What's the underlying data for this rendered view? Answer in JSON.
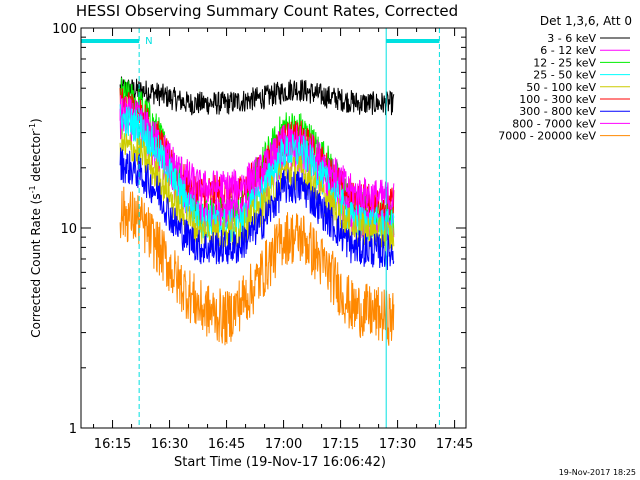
{
  "chart_data": {
    "type": "line",
    "title": "HESSI Observing Summary Count Rates, Corrected",
    "xlabel": "Start Time (19-Nov-17 16:06:42)",
    "ylabel_main": "Corrected Count Rate (s",
    "ylabel_sup1": "-1",
    "ylabel_mid": " detector",
    "ylabel_sup2": "-1",
    "ylabel_end": ")",
    "yscale": "log",
    "ylim": [
      1,
      100
    ],
    "xlim": [
      "16:06:42",
      "17:48:00"
    ],
    "x_ticks": [
      "16:15",
      "16:30",
      "16:45",
      "17:00",
      "17:15",
      "17:30",
      "17:45"
    ],
    "y_ticks": [
      "1",
      "10",
      "100"
    ],
    "legend_title": "Det 1,3,6, Att 0",
    "legend_position": "outside-right-top",
    "footer_date": "19-Nov-2017 18:25",
    "night_label": "N",
    "annotations": {
      "solid_lines": [
        "16:06:42",
        "17:27:00"
      ],
      "dashed_lines": [
        "16:22:00",
        "17:41:00"
      ],
      "bars": [
        {
          "from": "16:06:42",
          "to": "16:22:00",
          "label": "N"
        },
        {
          "from": "17:27:00",
          "to": "17:41:00",
          "label": ""
        }
      ],
      "color": "#00e0e0"
    },
    "series": [
      {
        "name": "3 - 6 keV",
        "color": "#000000",
        "points": [
          [
            "16:17",
            50
          ],
          [
            "16:25",
            48
          ],
          [
            "16:35",
            42
          ],
          [
            "16:45",
            42
          ],
          [
            "16:55",
            45
          ],
          [
            "17:03",
            50
          ],
          [
            "17:10",
            46
          ],
          [
            "17:20",
            42
          ],
          [
            "17:29",
            42
          ]
        ]
      },
      {
        "name": "6 - 12 keV",
        "color": "#ff00ff",
        "points": [
          [
            "16:17",
            38
          ],
          [
            "16:22",
            35
          ],
          [
            "16:27",
            27
          ],
          [
            "16:32",
            20
          ],
          [
            "16:38",
            16
          ],
          [
            "16:48",
            16
          ],
          [
            "16:55",
            20
          ],
          [
            "17:00",
            27
          ],
          [
            "17:05",
            27
          ],
          [
            "17:12",
            20
          ],
          [
            "17:18",
            15
          ],
          [
            "17:29",
            14
          ]
        ]
      },
      {
        "name": "12 - 25 keV",
        "color": "#00ee00",
        "points": [
          [
            "16:17",
            47
          ],
          [
            "16:22",
            42
          ],
          [
            "16:27",
            30
          ],
          [
            "16:32",
            19
          ],
          [
            "16:38",
            12
          ],
          [
            "16:48",
            12
          ],
          [
            "16:55",
            22
          ],
          [
            "17:00",
            32
          ],
          [
            "17:05",
            31
          ],
          [
            "17:12",
            21
          ],
          [
            "17:18",
            13
          ],
          [
            "17:29",
            11
          ]
        ]
      },
      {
        "name": "25 - 50 keV",
        "color": "#00ffff",
        "points": [
          [
            "16:17",
            35
          ],
          [
            "16:22",
            32
          ],
          [
            "16:27",
            24
          ],
          [
            "16:32",
            16
          ],
          [
            "16:38",
            11
          ],
          [
            "16:48",
            10
          ],
          [
            "16:55",
            16
          ],
          [
            "17:00",
            24
          ],
          [
            "17:05",
            24
          ],
          [
            "17:12",
            16
          ],
          [
            "17:18",
            11
          ],
          [
            "17:29",
            10
          ]
        ]
      },
      {
        "name": "50 - 100 keV",
        "color": "#cccc00",
        "points": [
          [
            "16:17",
            26
          ],
          [
            "16:22",
            24
          ],
          [
            "16:27",
            18
          ],
          [
            "16:32",
            12.5
          ],
          [
            "16:38",
            9.5
          ],
          [
            "16:48",
            9.5
          ],
          [
            "16:55",
            13
          ],
          [
            "17:00",
            19
          ],
          [
            "17:05",
            19
          ],
          [
            "17:12",
            13
          ],
          [
            "17:18",
            10
          ],
          [
            "17:29",
            9
          ]
        ]
      },
      {
        "name": "100 - 300 keV",
        "color": "#ff0000",
        "points": [
          [
            "16:17",
            42
          ],
          [
            "16:22",
            38
          ],
          [
            "16:27",
            28
          ],
          [
            "16:32",
            18
          ],
          [
            "16:38",
            15
          ],
          [
            "16:48",
            15
          ],
          [
            "16:55",
            20
          ],
          [
            "17:00",
            28
          ],
          [
            "17:05",
            28
          ],
          [
            "17:12",
            19
          ],
          [
            "17:18",
            14
          ],
          [
            "17:29",
            13
          ]
        ]
      },
      {
        "name": "300 - 800 keV",
        "color": "#0000ff",
        "points": [
          [
            "16:17",
            21
          ],
          [
            "16:22",
            19
          ],
          [
            "16:27",
            15
          ],
          [
            "16:32",
            10
          ],
          [
            "16:38",
            8
          ],
          [
            "16:48",
            8
          ],
          [
            "16:55",
            11
          ],
          [
            "17:00",
            16
          ],
          [
            "17:05",
            16
          ],
          [
            "17:12",
            11
          ],
          [
            "17:18",
            8
          ],
          [
            "17:29",
            7.5
          ]
        ]
      },
      {
        "name": "800 - 7000 keV",
        "color": "#ff00ff",
        "points": [
          [
            "16:17",
            34
          ],
          [
            "16:22",
            31
          ],
          [
            "16:27",
            23
          ],
          [
            "16:32",
            16
          ],
          [
            "16:38",
            12
          ],
          [
            "16:48",
            12
          ],
          [
            "16:55",
            17
          ],
          [
            "17:00",
            23
          ],
          [
            "17:05",
            23
          ],
          [
            "17:12",
            16
          ],
          [
            "17:18",
            11
          ],
          [
            "17:29",
            10
          ]
        ]
      },
      {
        "name": "7000 - 20000 keV",
        "color": "#ff8800",
        "points": [
          [
            "16:17",
            12
          ],
          [
            "16:22",
            11
          ],
          [
            "16:27",
            8
          ],
          [
            "16:32",
            5.5
          ],
          [
            "16:38",
            4
          ],
          [
            "16:45",
            3.5
          ],
          [
            "16:52",
            5
          ],
          [
            "17:00",
            9
          ],
          [
            "17:05",
            9
          ],
          [
            "17:12",
            6
          ],
          [
            "17:18",
            4
          ],
          [
            "17:29",
            3.5
          ]
        ]
      }
    ]
  }
}
